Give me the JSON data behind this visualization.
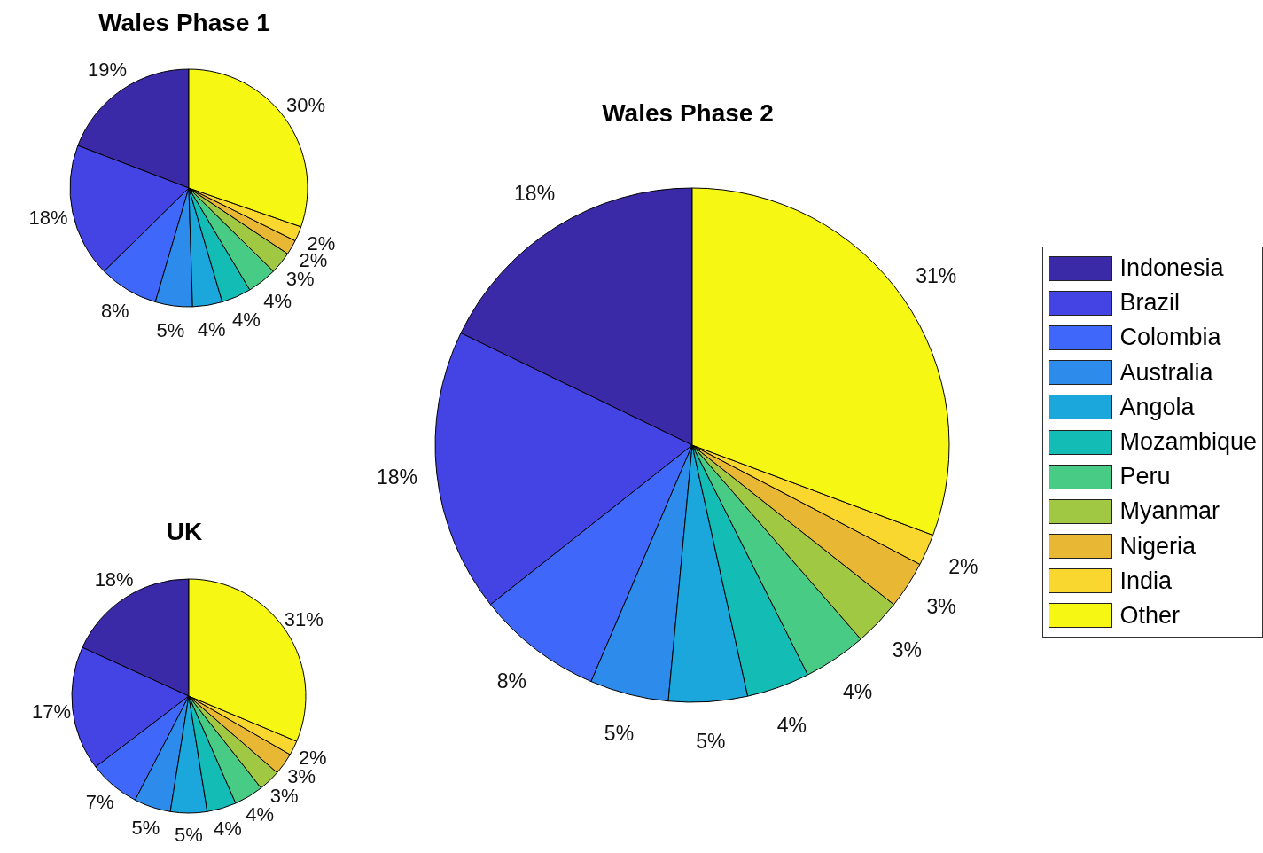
{
  "chart_data": [
    {
      "type": "pie",
      "title": "Wales Phase 1",
      "categories": [
        null,
        null,
        null,
        null,
        null,
        null,
        null,
        null,
        null,
        null,
        null
      ],
      "values": [
        19,
        18,
        8,
        5,
        4,
        4,
        4,
        3,
        2,
        2,
        30
      ],
      "value_labels": [
        "19%",
        "18%",
        "8%",
        "5%",
        "4%",
        "4%",
        "4%",
        "3%",
        "2%",
        "2%",
        "30%"
      ],
      "colors": [
        "#3b2aa7",
        "#4444e4",
        "#3f68fb",
        "#2d8ceb",
        "#1ba6dc",
        "#13bcb4",
        "#47cb85",
        "#a0c843",
        "#e8b733",
        "#fad72e",
        "#f7f714"
      ],
      "legend": false
    },
    {
      "type": "pie",
      "title": "Wales Phase 2",
      "categories": [
        "Indonesia",
        "Brazil",
        "Colombia",
        "Australia",
        "Angola",
        "Mozambique",
        "Peru",
        "Myanmar",
        "Nigeria",
        "India",
        "Other"
      ],
      "values": [
        18,
        18,
        8,
        5,
        5,
        4,
        4,
        3,
        3,
        2,
        31
      ],
      "value_labels": [
        "18%",
        "18%",
        "8%",
        "5%",
        "5%",
        "4%",
        "4%",
        "3%",
        "3%",
        "2%",
        "31%"
      ],
      "colors": [
        "#3b2aa7",
        "#4444e4",
        "#3f68fb",
        "#2d8ceb",
        "#1ba6dc",
        "#13bcb4",
        "#47cb85",
        "#a0c843",
        "#e8b733",
        "#fad72e",
        "#f7f714"
      ],
      "legend": "right"
    },
    {
      "type": "pie",
      "title": "UK",
      "categories": [
        null,
        null,
        null,
        null,
        null,
        null,
        null,
        null,
        null,
        null,
        null
      ],
      "values": [
        18,
        17,
        7,
        5,
        5,
        4,
        4,
        3,
        3,
        2,
        31
      ],
      "value_labels": [
        "18%",
        "17%",
        "7%",
        "5%",
        "5%",
        "4%",
        "4%",
        "3%",
        "3%",
        "2%",
        "31%"
      ],
      "colors": [
        "#3b2aa7",
        "#4444e4",
        "#3f68fb",
        "#2d8ceb",
        "#1ba6dc",
        "#13bcb4",
        "#47cb85",
        "#a0c843",
        "#e8b733",
        "#fad72e",
        "#f7f714"
      ],
      "legend": false
    }
  ]
}
